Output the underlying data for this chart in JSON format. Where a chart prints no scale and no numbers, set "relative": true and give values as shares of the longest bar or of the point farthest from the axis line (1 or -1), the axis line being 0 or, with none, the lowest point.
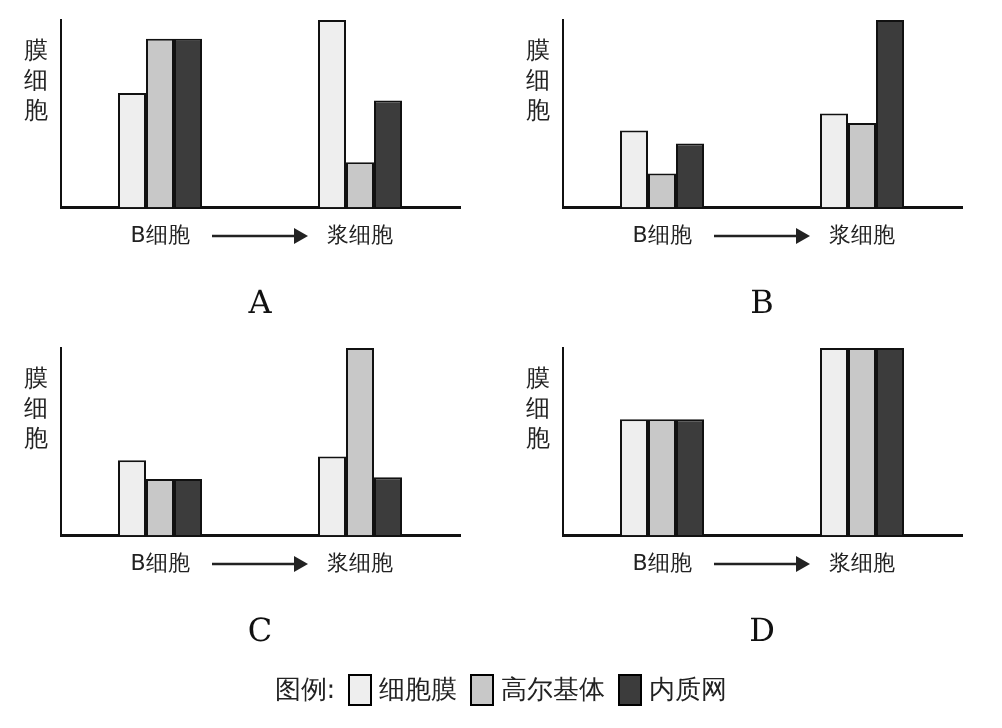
{
  "chart_data": [
    {
      "type": "bar",
      "title": "A",
      "ylabel": "膜细胞",
      "categories": [
        "B细胞",
        "浆细胞"
      ],
      "relative": true,
      "legend": "bottom",
      "legend_title": "图例:",
      "series": [
        {
          "name": "细胞膜",
          "color": "#eeeeee",
          "values": [
            0.61,
            1
          ]
        },
        {
          "name": "高尔基体",
          "color": "#c8c8c8",
          "values": [
            0.9,
            0.24
          ]
        },
        {
          "name": "内质网",
          "color": "#3c3c3c",
          "values": [
            0.9,
            0.57
          ]
        }
      ]
    },
    {
      "type": "bar",
      "title": "B",
      "ylabel": "膜细胞",
      "categories": [
        "B细胞",
        "浆细胞"
      ],
      "relative": true,
      "series": [
        {
          "color": "#eeeeee",
          "values": [
            0.41,
            0.5
          ]
        },
        {
          "color": "#c8c8c8",
          "values": [
            0.18,
            0.45
          ]
        },
        {
          "color": "#3c3c3c",
          "values": [
            0.34,
            1
          ]
        }
      ]
    },
    {
      "type": "bar",
      "title": "C",
      "ylabel": "膜细胞",
      "categories": [
        "B细胞",
        "浆细胞"
      ],
      "relative": true,
      "series": [
        {
          "color": "#eeeeee",
          "values": [
            0.4,
            0.42
          ]
        },
        {
          "color": "#c8c8c8",
          "values": [
            0.3,
            1
          ]
        },
        {
          "color": "#3c3c3c",
          "values": [
            0.3,
            0.31
          ]
        }
      ]
    },
    {
      "type": "bar",
      "title": "D",
      "ylabel": "膜细胞",
      "categories": [
        "B细胞",
        "浆细胞"
      ],
      "relative": true,
      "series": [
        {
          "color": "#eeeeee",
          "values": [
            0.62,
            1
          ]
        },
        {
          "color": "#c8c8c8",
          "values": [
            0.62,
            1
          ]
        },
        {
          "color": "#3c3c3c",
          "values": [
            0.62,
            1
          ]
        }
      ]
    }
  ]
}
